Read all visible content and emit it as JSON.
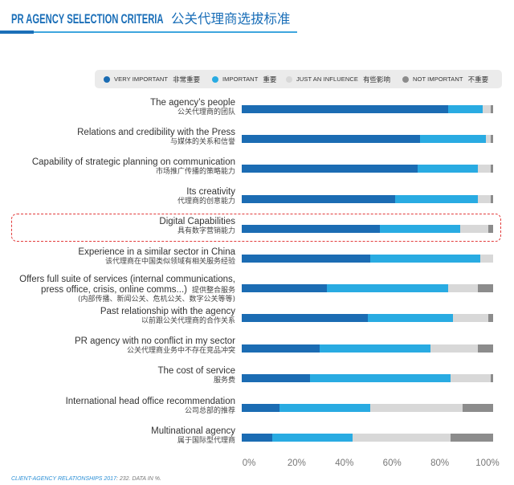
{
  "chart_data": {
    "type": "bar",
    "horizontal": true,
    "stacked": true,
    "title": "PR AGENCY SELECTION CRITERIA",
    "title_cn": "公关代理商选拔标准",
    "categories": [
      {
        "label": "The agency’s people",
        "label_cn": "公关代理商的团队"
      },
      {
        "label": "Relations and credibility with the Press",
        "label_cn": "与媒体的关系和信誉"
      },
      {
        "label": "Capability of strategic planning on communication",
        "label_cn": "市场推广传播的策略能力"
      },
      {
        "label": "Its creativity",
        "label_cn": "代理商的创意能力"
      },
      {
        "label": "Digital Capabilities",
        "label_cn": "具有数字营销能力",
        "highlighted": true
      },
      {
        "label": "Experience in a similar sector in China",
        "label_cn": "该代理商在中国类似领域有相关服务经验"
      },
      {
        "label": "Offers full suite of services (internal communications,\npress office, crisis, online comms...)",
        "label_cn": "提供整合服务",
        "label_cn_note": "(内部传播、新闻公关、危机公关、数字公关等等)"
      },
      {
        "label": "Past relationship with the agency",
        "label_cn": "以前跟公关代理商的合作关系"
      },
      {
        "label": "PR agency with no conflict in my sector",
        "label_cn": "公关代理商业务中不存在竞品冲突"
      },
      {
        "label": "The cost of service",
        "label_cn": "服务费"
      },
      {
        "label": "International head office recommendation",
        "label_cn": "公司总部的推荐"
      },
      {
        "label": "Multinational agency",
        "label_cn": "属于国际型代理商"
      }
    ],
    "series": [
      {
        "name": "VERY IMPORTANT",
        "name_cn": "非常重要",
        "color": "#1b6cb3",
        "values": [
          82,
          71,
          70,
          61,
          55,
          51,
          34,
          50,
          31,
          27,
          15,
          12
        ]
      },
      {
        "name": "IMPORTANT",
        "name_cn": "重要",
        "color": "#29abe2",
        "values": [
          14,
          26,
          24,
          33,
          32,
          44,
          48,
          34,
          44,
          56,
          36,
          32
        ]
      },
      {
        "name": "JUST AN INFLUENCE",
        "name_cn": "有些影响",
        "color": "#d8d8d8",
        "values": [
          3,
          2,
          5,
          5,
          11,
          5,
          12,
          14,
          19,
          16,
          37,
          39
        ]
      },
      {
        "name": "NOT IMPORTANT",
        "name_cn": "不重要",
        "color": "#8c8c8c",
        "values": [
          1,
          1,
          1,
          1,
          2,
          0,
          6,
          2,
          6,
          1,
          12,
          17
        ]
      }
    ],
    "xlim": [
      0,
      100
    ],
    "x_tick_values": [
      0,
      20,
      40,
      60,
      80,
      100
    ],
    "x_ticks": [
      "0%",
      "20%",
      "40%",
      "60%",
      "80%",
      "100%"
    ],
    "grid": false
  },
  "footer": {
    "source_title": "CLIENT-AGENCY RELATIONSHIPS 2017",
    "source_note": ": 232. DATA IN %."
  }
}
